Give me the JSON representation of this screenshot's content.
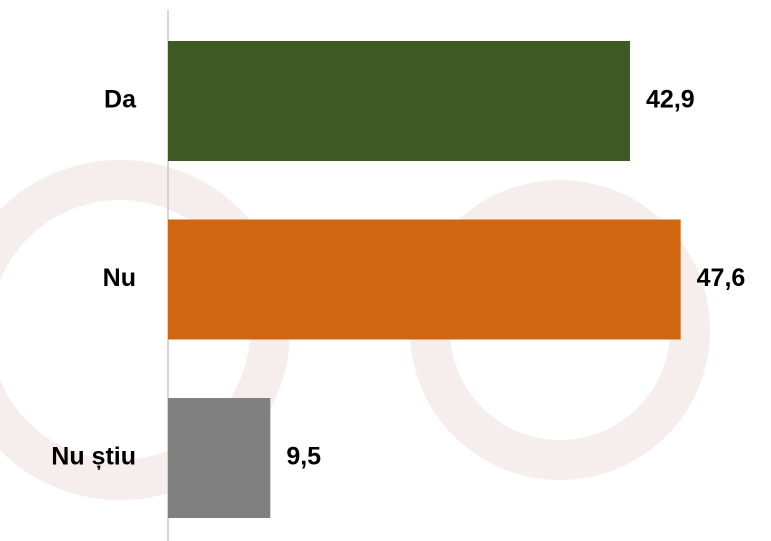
{
  "chart_data": {
    "type": "hbar",
    "categories": [
      "Da",
      "Nu",
      "Nu știu"
    ],
    "values": [
      42.9,
      47.6,
      9.5
    ],
    "value_labels": [
      "42,9",
      "47,6",
      "9,5"
    ],
    "colors": [
      "#3d5a24",
      "#d06612",
      "#808080"
    ]
  }
}
